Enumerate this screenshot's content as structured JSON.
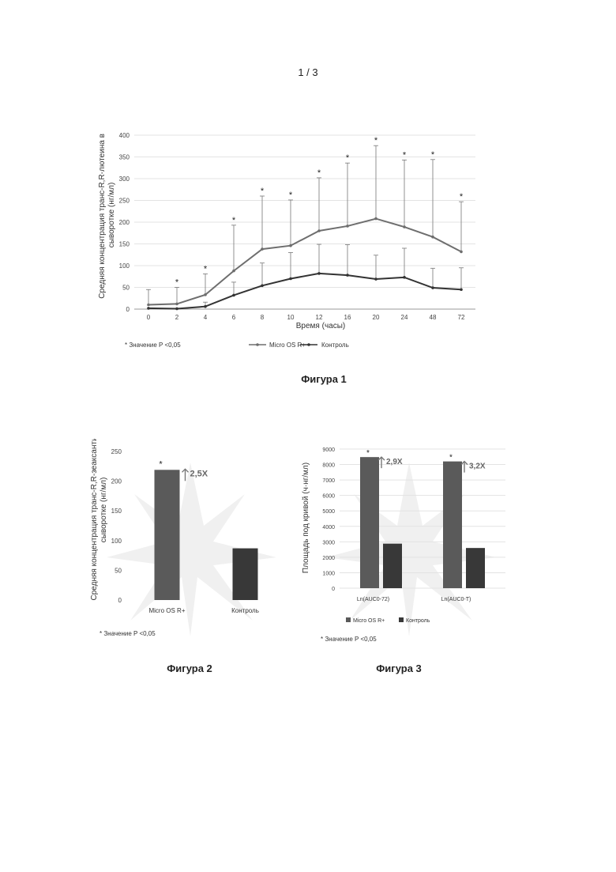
{
  "page_number": "1 / 3",
  "chart_data": [
    {
      "id": "fig1",
      "type": "line",
      "caption": "Фигура 1",
      "ylabel": "Средняя концентрация транс-R,R-лютеина в сыворотке (нг/мл)",
      "xlabel": "Время (часы)",
      "categories": [
        "0",
        "2",
        "4",
        "6",
        "8",
        "10",
        "12",
        "16",
        "20",
        "24",
        "48",
        "72"
      ],
      "ylim": [
        0,
        400
      ],
      "yticks": [
        0,
        50,
        100,
        150,
        200,
        250,
        300,
        350,
        400
      ],
      "grid": true,
      "series": [
        {
          "name": "Micro OS R+",
          "color": "#6e6e6e",
          "values": [
            10,
            12,
            33,
            88,
            138,
            146,
            180,
            191,
            208,
            189,
            166,
            132
          ],
          "errors": [
            35,
            38,
            48,
            105,
            122,
            105,
            122,
            145,
            168,
            154,
            178,
            115
          ],
          "significant": [
            false,
            true,
            true,
            true,
            true,
            true,
            true,
            true,
            true,
            true,
            true,
            true
          ]
        },
        {
          "name": "Контроль",
          "color": "#333333",
          "values": [
            2,
            1,
            6,
            32,
            54,
            70,
            82,
            78,
            69,
            73,
            49,
            45
          ],
          "errors": [
            0,
            0,
            10,
            30,
            52,
            60,
            67,
            70,
            55,
            67,
            45,
            50
          ],
          "significant": [
            false,
            false,
            false,
            false,
            false,
            false,
            false,
            false,
            false,
            false,
            false,
            false
          ]
        }
      ],
      "legend_position": "bottom",
      "footnote": "* Значение P <0,05",
      "significance_marker": "*"
    },
    {
      "id": "fig2",
      "type": "bar",
      "caption": "Фигура 2",
      "ylabel": "Средняя концентрация транс-R,R-зеаксантина в сыворотке (нг/мл)",
      "categories": [
        "Micro OS R+",
        "Контроль"
      ],
      "values": [
        219,
        87
      ],
      "colors": [
        "#5a5a5a",
        "#383838"
      ],
      "ylim": [
        0,
        250
      ],
      "yticks": [
        0,
        50,
        100,
        150,
        200,
        250
      ],
      "grid": false,
      "significance_marker": "*",
      "fold_annotation": "2,5X",
      "footnote": "* Значение P <0,05"
    },
    {
      "id": "fig3",
      "type": "bar",
      "caption": "Фигура 3",
      "ylabel": "Площадь под кривой (ч·нг/мл)",
      "categories": [
        "Ln(AUC0-72)",
        "Ln(AUC0-T)"
      ],
      "series": [
        {
          "name": "Micro OS R+",
          "color": "#5a5a5a",
          "values": [
            8480,
            8200
          ]
        },
        {
          "name": "Контроль",
          "color": "#383838",
          "values": [
            2880,
            2600
          ]
        }
      ],
      "ylim": [
        0,
        9000
      ],
      "yticks": [
        0,
        1000,
        2000,
        3000,
        4000,
        5000,
        6000,
        7000,
        8000,
        9000
      ],
      "grid": true,
      "significance_marker": "*",
      "fold_annotations": [
        "2,9X",
        "3,2X"
      ],
      "legend_position": "bottom",
      "footnote": "* Значение P <0,05"
    }
  ]
}
